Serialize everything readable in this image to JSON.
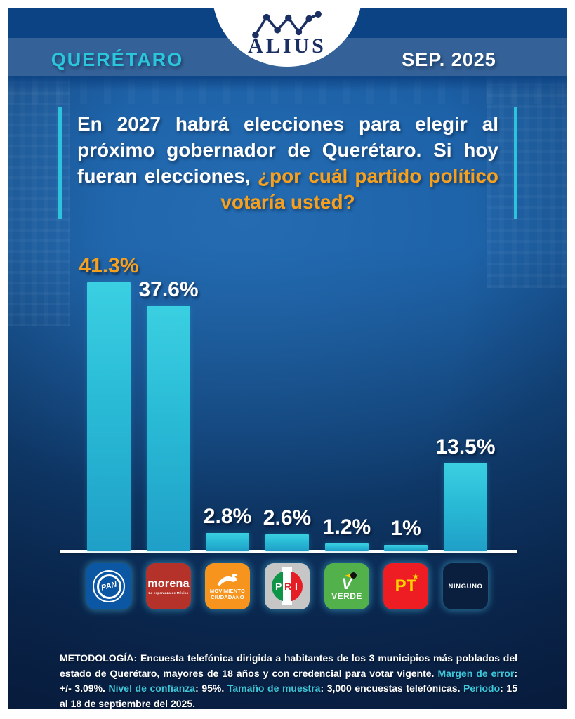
{
  "header": {
    "region": "QUERÉTARO",
    "date": "SEP. 2025",
    "brand": "ALIUS"
  },
  "question": {
    "segments": [
      {
        "style": "regular",
        "text": "En 2027 habrá elecciones para elegir al próximo "
      },
      {
        "style": "bold",
        "text": "gobernador de Querétaro. Si hoy fueran elecciones, "
      },
      {
        "style": "orange",
        "text": "¿por cuál partido político votaría usted?"
      }
    ]
  },
  "chart_data": {
    "type": "bar",
    "categories": [
      "PAN",
      "Morena",
      "Movimiento Ciudadano",
      "PRI",
      "Verde",
      "PT",
      "Ninguno"
    ],
    "values": [
      41.3,
      37.6,
      2.8,
      2.6,
      1.2,
      1.0,
      13.5
    ],
    "labels": [
      "41.3%",
      "37.6%",
      "2.8%",
      "2.6%",
      "1.2%",
      "1%",
      "13.5%"
    ],
    "highlight_index": 0,
    "xlabel": "",
    "ylabel": "",
    "ylim": [
      0,
      45
    ],
    "grid": false,
    "legend": false,
    "bar_color": "#2bc3db",
    "highlight_label_color": "#f6a01e",
    "label_color": "#ffffff"
  },
  "parties": [
    {
      "name": "pan",
      "label": "PAN",
      "bg": "#0b57a4"
    },
    {
      "name": "morena",
      "label": "morena",
      "tagline": "La esperanza de México",
      "bg": "#b5322a"
    },
    {
      "name": "movimiento-ciudadano",
      "line1": "MOVIMIENTO",
      "line2": "CIUDADANO",
      "bg": "#f7941d"
    },
    {
      "name": "pri",
      "l1": "P",
      "l2": "R",
      "l3": "I",
      "bg": "#c6c6c6"
    },
    {
      "name": "verde",
      "label": "V",
      "word": "VERDE",
      "bg": "#52b14a"
    },
    {
      "name": "pt",
      "label": "PT",
      "star": "★",
      "bg": "#ee1d23"
    },
    {
      "name": "ninguno",
      "label": "NINGUNO",
      "bg": "#0a1f3e"
    }
  ],
  "methodology": {
    "segments": [
      {
        "style": "title",
        "text": "METODOLOGÍA: "
      },
      {
        "style": "normal",
        "text": "Encuesta telefónica dirigida a habitantes de los 3 municipios más poblados del estado de Querétaro, mayores de 18 años y con credencial para votar vigente. "
      },
      {
        "style": "cyan",
        "text": "Margen de error"
      },
      {
        "style": "normal",
        "text": ": +/- 3.09%. "
      },
      {
        "style": "cyan",
        "text": "Nivel de confianza"
      },
      {
        "style": "normal",
        "text": ": 95%. "
      },
      {
        "style": "cyan",
        "text": "Tamaño de muestra"
      },
      {
        "style": "normal",
        "text": ": 3,000 encuestas telefónicas. "
      },
      {
        "style": "cyan",
        "text": "Período"
      },
      {
        "style": "normal",
        "text": ": 15 al 18 de septiembre del 2025."
      }
    ]
  },
  "colors": {
    "accent_cyan": "#2bc6db",
    "accent_orange": "#f6a01e",
    "background_top": "#1a5ea4",
    "background_bottom": "#0a2146",
    "brand_navy": "#1b2f63"
  }
}
